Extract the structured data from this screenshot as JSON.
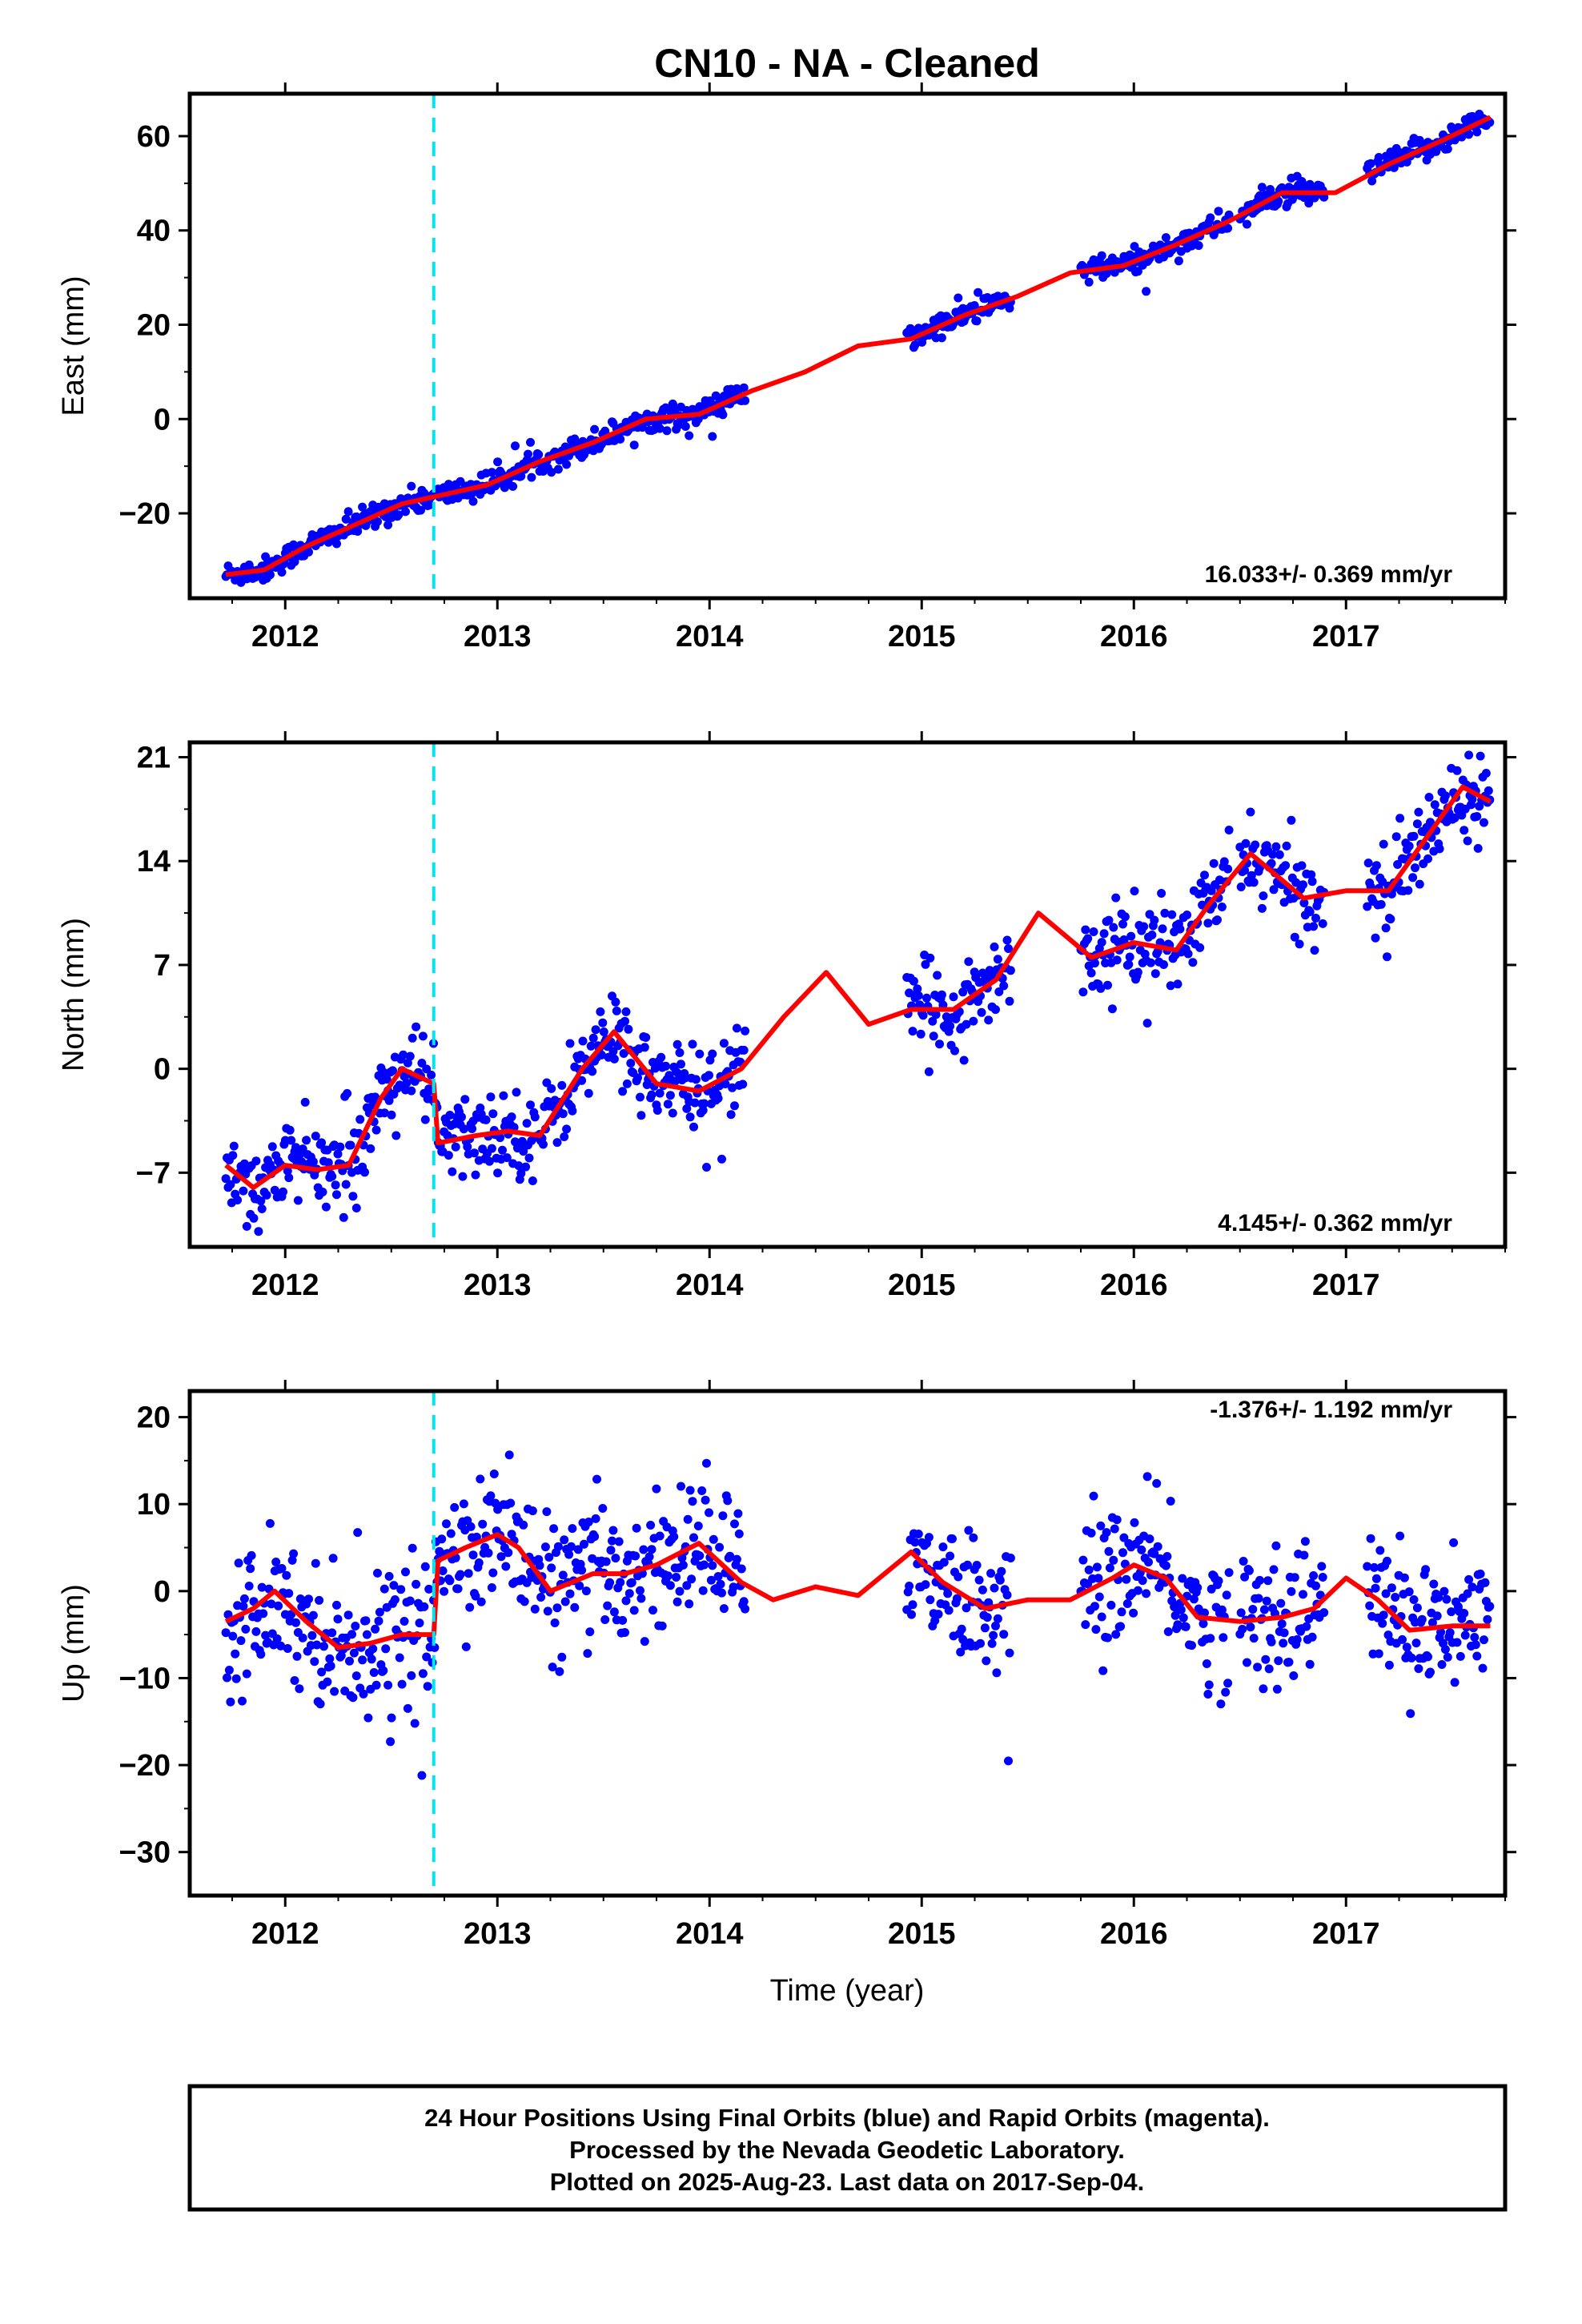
{
  "title": "CN10  - NA - Cleaned",
  "xlabel": "Time (year)",
  "caption": [
    "24 Hour Positions Using Final Orbits (blue) and Rapid Orbits (magenta).",
    "Processed by the Nevada Geodetic Laboratory.",
    "Plotted on 2025-Aug-23. Last data on 2017-Sep-04."
  ],
  "colors": {
    "data": "#0000ff",
    "model": "#ff0000",
    "event": "#00e5ee",
    "frame": "#000000"
  },
  "chart_data": [
    {
      "type": "scatter",
      "ylabel": "East (mm)",
      "rate": "16.033+/- 0.369 mm/yr",
      "xlim": [
        2011.55,
        2017.75
      ],
      "ylim": [
        -38,
        69
      ],
      "yticks": [
        -20,
        0,
        20,
        40,
        60
      ],
      "ytick_labels": [
        "−20",
        "0",
        "20",
        "40",
        "60"
      ],
      "xticks": [
        2012,
        2013,
        2014,
        2015,
        2016,
        2017
      ],
      "xtick_labels": [
        "2012",
        "2013",
        "2014",
        "2015",
        "2016",
        "2017"
      ],
      "event_line_x": 2012.7,
      "data_segments": [
        [
          2011.72,
          2014.17
        ],
        [
          2014.93,
          2015.42
        ],
        [
          2015.75,
          2016.45
        ],
        [
          2016.5,
          2016.9
        ],
        [
          2017.1,
          2017.68
        ]
      ],
      "model_curve": {
        "x": [
          2011.72,
          2011.9,
          2012.1,
          2012.3,
          2012.55,
          2012.75,
          2012.95,
          2013.2,
          2013.45,
          2013.7,
          2013.95,
          2014.2,
          2014.45,
          2014.7,
          2014.95,
          2015.2,
          2015.45,
          2015.7,
          2015.95,
          2016.2,
          2016.45,
          2016.7,
          2016.95,
          2017.2,
          2017.45,
          2017.68
        ],
        "y": [
          -33,
          -32,
          -27,
          -23,
          -18,
          -16,
          -14,
          -9,
          -5,
          0,
          1,
          6,
          10,
          15.5,
          17,
          22,
          26,
          31,
          32.5,
          37,
          42,
          48,
          48,
          54,
          59,
          64
        ]
      },
      "scatter_sd": 1.3
    },
    {
      "type": "scatter",
      "ylabel": "North (mm)",
      "rate": "4.145+/- 0.362 mm/yr",
      "xlim": [
        2011.55,
        2017.75
      ],
      "ylim": [
        -12,
        22
      ],
      "yticks": [
        -7,
        0,
        7,
        14,
        21
      ],
      "ytick_labels": [
        "−7",
        "0",
        "7",
        "14",
        "21"
      ],
      "xticks": [
        2012,
        2013,
        2014,
        2015,
        2016,
        2017
      ],
      "xtick_labels": [
        "2012",
        "2013",
        "2014",
        "2015",
        "2016",
        "2017"
      ],
      "event_line_x": 2012.7,
      "data_segments": [
        [
          2011.72,
          2014.17
        ],
        [
          2014.93,
          2015.42
        ],
        [
          2015.75,
          2016.45
        ],
        [
          2016.5,
          2016.9
        ],
        [
          2017.1,
          2017.68
        ]
      ],
      "model_curve": {
        "x": [
          2011.72,
          2011.85,
          2012.0,
          2012.15,
          2012.3,
          2012.45,
          2012.55,
          2012.7,
          2012.72,
          2012.9,
          2013.05,
          2013.2,
          2013.4,
          2013.55,
          2013.75,
          2013.95,
          2014.15,
          2014.35,
          2014.55,
          2014.75,
          2014.95,
          2015.15,
          2015.35,
          2015.55,
          2015.8,
          2016.0,
          2016.2,
          2016.35,
          2016.55,
          2016.8,
          2017.0,
          2017.2,
          2017.4,
          2017.55,
          2017.68
        ],
        "y": [
          -6.5,
          -8,
          -6.5,
          -6.8,
          -6.5,
          -2,
          0,
          -1,
          -5,
          -4.5,
          -4.2,
          -4.5,
          0,
          2.5,
          -1,
          -1.5,
          0,
          3.5,
          6.5,
          3,
          4,
          4,
          6,
          10.5,
          7.5,
          8.5,
          8,
          11,
          14.5,
          11.5,
          12,
          12,
          16,
          19,
          18
        ]
      },
      "scatter_sd": 1.4
    },
    {
      "type": "scatter",
      "ylabel": "Up (mm)",
      "rate": "-1.376+/- 1.192 mm/yr",
      "xlim": [
        2011.55,
        2017.75
      ],
      "ylim": [
        -35,
        23
      ],
      "yticks": [
        -30,
        -20,
        -10,
        0,
        10,
        20
      ],
      "ytick_labels": [
        "−30",
        "−20",
        "−10",
        "0",
        "10",
        "20"
      ],
      "xticks": [
        2012,
        2013,
        2014,
        2015,
        2016,
        2017
      ],
      "xtick_labels": [
        "2012",
        "2013",
        "2014",
        "2015",
        "2016",
        "2017"
      ],
      "event_line_x": 2012.7,
      "data_segments": [
        [
          2011.72,
          2014.17
        ],
        [
          2014.93,
          2015.42
        ],
        [
          2015.75,
          2016.45
        ],
        [
          2016.5,
          2016.9
        ],
        [
          2017.1,
          2017.68
        ]
      ],
      "model_curve": {
        "x": [
          2011.72,
          2011.85,
          2011.95,
          2012.1,
          2012.25,
          2012.4,
          2012.55,
          2012.69,
          2012.7,
          2012.72,
          2012.85,
          2013.0,
          2013.1,
          2013.25,
          2013.45,
          2013.6,
          2013.75,
          2013.95,
          2014.15,
          2014.3,
          2014.5,
          2014.7,
          2014.95,
          2015.1,
          2015.3,
          2015.5,
          2015.7,
          2015.9,
          2016.0,
          2016.15,
          2016.3,
          2016.5,
          2016.7,
          2016.85,
          2017.0,
          2017.15,
          2017.3,
          2017.5,
          2017.68
        ],
        "y": [
          -3.5,
          -2,
          0,
          -3.5,
          -6.5,
          -6,
          -5,
          -5,
          -5,
          3.5,
          5,
          6.5,
          5,
          0,
          2,
          2,
          3,
          5.5,
          1,
          -1,
          0.5,
          -0.5,
          4.5,
          1,
          -2,
          -1,
          -1,
          1.5,
          3,
          1.5,
          -3,
          -3.5,
          -3,
          -2,
          1.5,
          -1,
          -4.5,
          -4,
          -4
        ]
      },
      "scatter_sd": 3.8
    }
  ]
}
